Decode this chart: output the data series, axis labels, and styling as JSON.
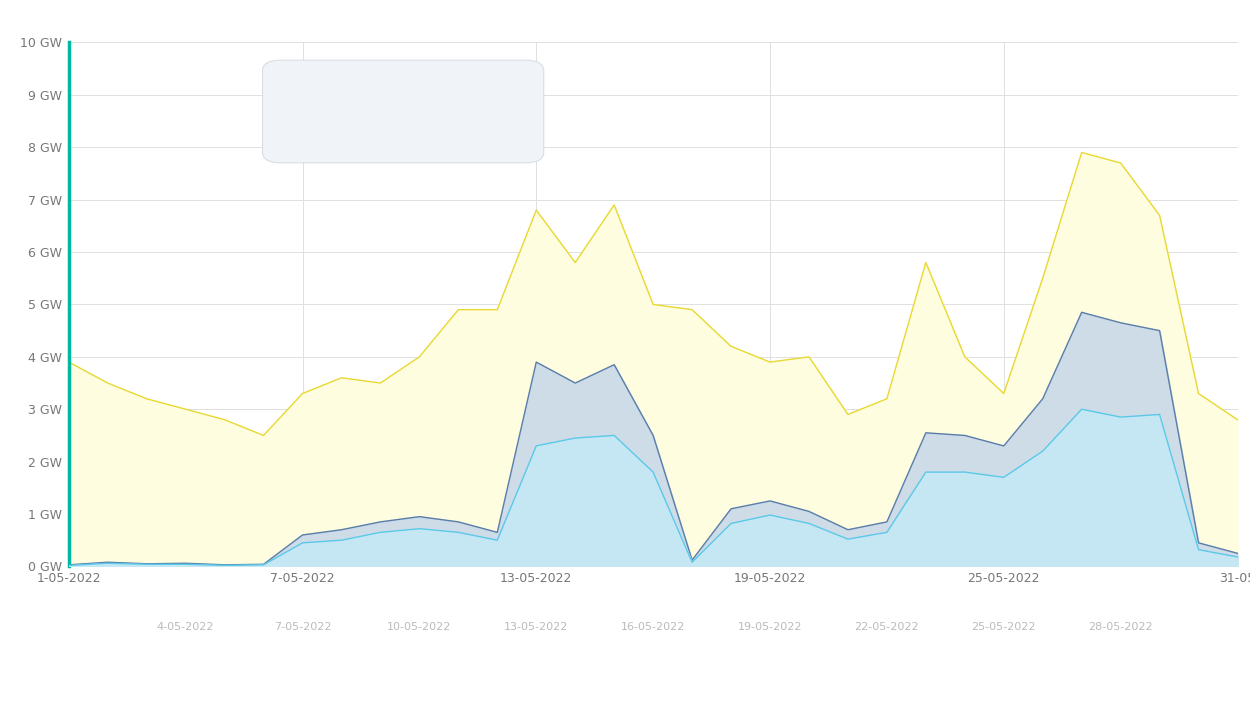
{
  "background_color": "#ffffff",
  "plot_bg_color": "#ffffff",
  "ylim": [
    0,
    10
  ],
  "yticks": [
    0,
    1,
    2,
    3,
    4,
    5,
    6,
    7,
    8,
    9,
    10
  ],
  "solar_total": [
    3.9,
    3.5,
    3.2,
    3.0,
    2.8,
    2.5,
    3.3,
    3.6,
    3.5,
    4.0,
    4.9,
    4.9,
    6.8,
    5.8,
    6.9,
    5.0,
    4.9,
    4.2,
    3.9,
    4.0,
    2.9,
    3.2,
    5.8,
    4.0,
    3.3,
    5.5,
    7.9,
    7.7,
    6.7,
    3.3,
    2.8
  ],
  "offshore_total": [
    0.03,
    0.08,
    0.05,
    0.06,
    0.03,
    0.04,
    0.6,
    0.7,
    0.85,
    0.95,
    0.85,
    0.65,
    3.9,
    3.5,
    3.85,
    2.5,
    0.12,
    1.1,
    1.25,
    1.05,
    0.7,
    0.85,
    2.55,
    2.5,
    2.3,
    3.2,
    4.85,
    4.65,
    4.5,
    0.45,
    0.25
  ],
  "onshore_total": [
    0.02,
    0.06,
    0.04,
    0.04,
    0.02,
    0.03,
    0.45,
    0.5,
    0.65,
    0.72,
    0.65,
    0.5,
    2.3,
    2.45,
    2.5,
    1.8,
    0.08,
    0.82,
    0.98,
    0.82,
    0.52,
    0.65,
    1.8,
    1.8,
    1.7,
    2.2,
    3.0,
    2.85,
    2.9,
    0.32,
    0.18
  ],
  "color_solar_fill": "#fefde0",
  "color_solar_line": "#e8d832",
  "color_offshore_fill": "#c8d8ea",
  "color_offshore_line": "#5a7ea8",
  "color_onshore_fill": "#c5e8f5",
  "color_onshore_line": "#5bc8e8",
  "grid_color": "#e0e0e0",
  "tick_label_color_inner": "#777777",
  "tick_label_color_outer": "#bbbbbb",
  "inner_x_positions": [
    0,
    6,
    12,
    18,
    24,
    30
  ],
  "inner_x_labels": [
    "1-05-2022",
    "7-05-2022",
    "13-05-2022",
    "19-05-2022",
    "25-05-2022",
    "31-05"
  ],
  "outer_x_positions": [
    3,
    6,
    9,
    12,
    15,
    18,
    21,
    24,
    27
  ],
  "outer_x_labels": [
    "4-05-2022",
    "7-05-2022",
    "10-05-2022",
    "13-05-2022",
    "16-05-2022",
    "19-05-2022",
    "22-05-2022",
    "25-05-2022",
    "28-05-2022"
  ],
  "icon_wind_onshore_color": "#2e86c1",
  "icon_wind_offshore_color": "#1a3a6b",
  "icon_solar_color": "#f0b429",
  "left_spine_color": "#00b8a0"
}
